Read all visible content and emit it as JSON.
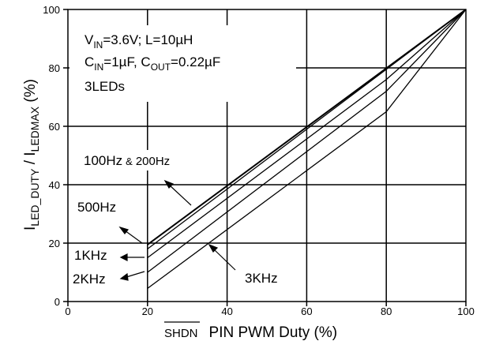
{
  "chart_data": {
    "type": "line",
    "xlabel_prefix": "SHDN",
    "xlabel_rest": "PIN PWM Duty (%)",
    "ylabel_parts": {
      "i1": "I",
      "s1": "LED_DUTY",
      "sep": " / I",
      "s2": "LEDMAX",
      "unit": " (%)"
    },
    "xlim": [
      0,
      100
    ],
    "ylim": [
      0,
      100
    ],
    "x_ticks": [
      "0",
      "20",
      "40",
      "60",
      "80",
      "100"
    ],
    "y_ticks": [
      "0",
      "20",
      "40",
      "60",
      "80",
      "100"
    ],
    "grid": true,
    "series": [
      {
        "name": "100Hz & 200Hz",
        "x": [
          20,
          100
        ],
        "y": [
          19.5,
          100
        ]
      },
      {
        "name": "500Hz",
        "x": [
          20,
          100
        ],
        "y": [
          18,
          100
        ]
      },
      {
        "name": "1KHz",
        "x": [
          20,
          80,
          100
        ],
        "y": [
          15,
          76,
          100
        ]
      },
      {
        "name": "2KHz",
        "x": [
          20,
          80,
          100
        ],
        "y": [
          10,
          72,
          100
        ]
      },
      {
        "name": "3KHz",
        "x": [
          20,
          80,
          100
        ],
        "y": [
          4.5,
          65,
          100
        ]
      }
    ],
    "conditions": {
      "line1": {
        "a": "V",
        "a_sub": "IN",
        "a_rest": "=3.6V; L=10µH"
      },
      "line2": {
        "a": "C",
        "a_sub": "IN",
        "a_rest": "=1µF, C",
        "b_sub": "OUT",
        "b_rest": "=0.22µF"
      },
      "line3": "3LEDs"
    },
    "labels": {
      "l100": "100Hz",
      "l100_amp": "&",
      "l200": "200Hz",
      "l500": "500Hz",
      "l1k": "1KHz",
      "l2k": "2KHz",
      "l3k": "3KHz"
    }
  }
}
